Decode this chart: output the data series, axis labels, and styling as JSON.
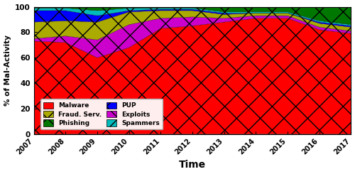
{
  "years": [
    2007,
    2008,
    2009,
    2010,
    2011,
    2012,
    2013,
    2014,
    2015,
    2016,
    2017
  ],
  "malware": [
    73,
    72,
    60,
    68,
    83,
    85,
    88,
    91,
    91,
    82,
    79
  ],
  "exploits": [
    2,
    5,
    14,
    18,
    8,
    7,
    3,
    2,
    2,
    2,
    2
  ],
  "fraud_serv": [
    13,
    12,
    14,
    10,
    6,
    5,
    3,
    2,
    2,
    3,
    3
  ],
  "pup": [
    9,
    8,
    5,
    1,
    1,
    1,
    1,
    0,
    0,
    1,
    1
  ],
  "spammers": [
    2,
    2,
    4,
    2,
    1,
    1,
    1,
    1,
    1,
    1,
    1
  ],
  "phishing": [
    1,
    1,
    3,
    1,
    1,
    1,
    4,
    4,
    4,
    11,
    14
  ],
  "colors": {
    "malware": "#ff0000",
    "exploits": "#cc00cc",
    "fraud_serv": "#aaaa00",
    "pup": "#0000ff",
    "spammers": "#00bbbb",
    "phishing": "#007700"
  },
  "xlabel": "Time",
  "ylabel": "% of Mal-Activity",
  "ylim": [
    0,
    100
  ],
  "xlim": [
    2007,
    2017
  ],
  "background_color": "#ffffff",
  "legend_bg": "#ffeeee"
}
